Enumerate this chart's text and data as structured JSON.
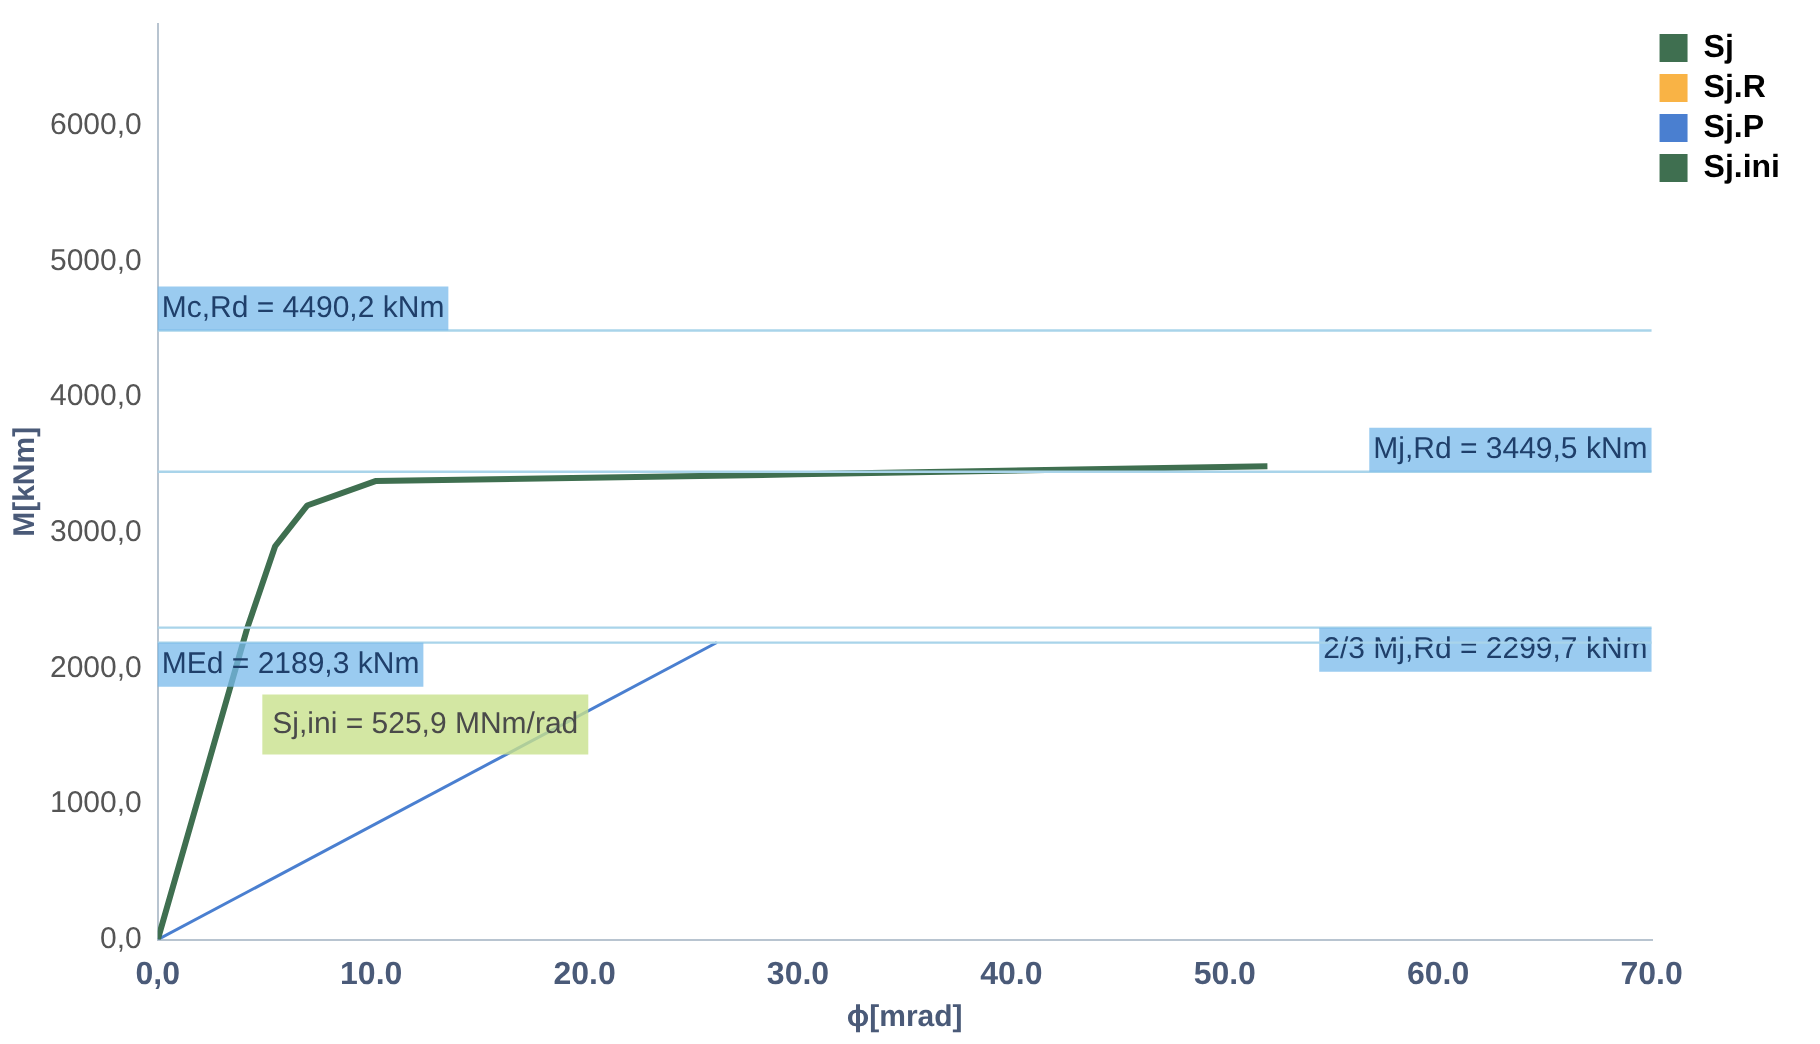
{
  "chart_data": {
    "type": "line",
    "xlabel": "ϕ[mrad]",
    "ylabel": "M[kNm]",
    "xlim": [
      0,
      70
    ],
    "xticks": [
      {
        "value": 0,
        "label": "0,0"
      },
      {
        "value": 10,
        "label": "10.0"
      },
      {
        "value": 20,
        "label": "20.0"
      },
      {
        "value": 30,
        "label": "30.0"
      },
      {
        "value": 40,
        "label": "40.0"
      },
      {
        "value": 50,
        "label": "50.0"
      },
      {
        "value": 60,
        "label": "60.0"
      },
      {
        "value": 70,
        "label": "70.0"
      }
    ],
    "ylim": [
      0,
      6750
    ],
    "yticks": [
      {
        "value": 0,
        "label": "0,0"
      },
      {
        "value": 1000,
        "label": "1000,0"
      },
      {
        "value": 2000,
        "label": "2000,0"
      },
      {
        "value": 3000,
        "label": "3000,0"
      },
      {
        "value": 4000,
        "label": "4000,0"
      },
      {
        "value": 5000,
        "label": "5000,0"
      },
      {
        "value": 6000,
        "label": "6000,0"
      }
    ],
    "series": [
      {
        "name": "Sj",
        "color": "#3f6f50",
        "x": [
          0,
          4.2,
          5.5,
          7,
          10.2,
          30,
          52
        ],
        "values": [
          0,
          2300,
          2900,
          3200,
          3380,
          3430,
          3490
        ]
      },
      {
        "name": "Sj.R",
        "color": "#f9b345"
      },
      {
        "name": "Sj.P",
        "color": "#4a7fd0",
        "x": [
          0,
          26.2
        ],
        "values": [
          0,
          2190
        ]
      },
      {
        "name": "Sj.ini",
        "color": "#3f6f50"
      }
    ],
    "ref_lines": [
      {
        "axis": "y",
        "value": 4490.2,
        "label": "Mc,Rd = 4490,2 kNm",
        "color": "#a9d4ea"
      },
      {
        "axis": "y",
        "value": 3449.5,
        "label": "Mj,Rd = 3449,5 kNm",
        "color": "#a9d4ea"
      },
      {
        "axis": "y",
        "value": 2299.7,
        "label": "2/3 Mj,Rd = 2299,7 kNm",
        "color": "#a9d4ea"
      },
      {
        "axis": "y",
        "value": 2189.3,
        "label": "MEd = 2189,3 kNm",
        "color": "#a9d4ea"
      }
    ],
    "annotations": [
      "Sj,ini = 525,9 MNm/rad"
    ],
    "legend": "top right",
    "marker": "none",
    "line_style": "solid",
    "grid": false
  }
}
